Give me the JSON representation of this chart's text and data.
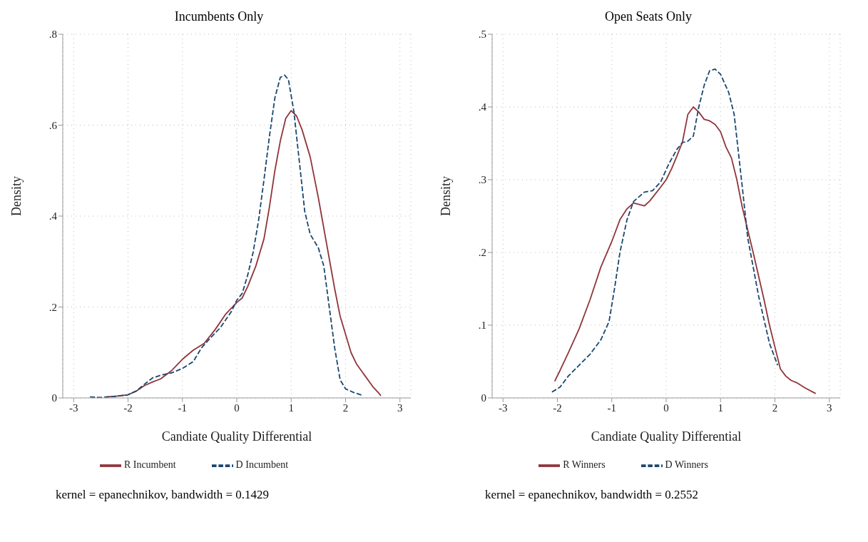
{
  "chart_data": [
    {
      "type": "line",
      "title": "Incumbents Only",
      "xlabel": "Candiate Quality Differential",
      "ylabel": "Density",
      "xlim": [
        -3.2,
        3.2
      ],
      "xticks": [
        -3,
        -2,
        -1,
        0,
        1,
        2,
        3
      ],
      "ylim": [
        0,
        0.8
      ],
      "yticks": [
        {
          "value": 0,
          "label": "0"
        },
        {
          "value": 0.2,
          "label": ".2"
        },
        {
          "value": 0.4,
          "label": ".4"
        },
        {
          "value": 0.6,
          "label": ".6"
        },
        {
          "value": 0.8,
          "label": ".8"
        }
      ],
      "grid": true,
      "legend": "bottom",
      "marker": "none",
      "annotations": [
        "kernel = epanechnikov, bandwidth = 0.1429"
      ],
      "series": [
        {
          "name": "R Incumbent",
          "color": "#90353b",
          "line_style": "solid",
          "x": [
            -2.4,
            -2.2,
            -2,
            -1.85,
            -1.7,
            -1.55,
            -1.4,
            -1.2,
            -1,
            -0.8,
            -0.6,
            -0.4,
            -0.2,
            0,
            0.1,
            0.2,
            0.35,
            0.5,
            0.6,
            0.7,
            0.8,
            0.9,
            1,
            1.1,
            1.2,
            1.35,
            1.5,
            1.65,
            1.8,
            1.9,
            2,
            2.1,
            2.2,
            2.35,
            2.5,
            2.6,
            2.65
          ],
          "values": [
            0.002,
            0.004,
            0.007,
            0.015,
            0.027,
            0.035,
            0.042,
            0.06,
            0.085,
            0.105,
            0.12,
            0.15,
            0.185,
            0.21,
            0.22,
            0.245,
            0.29,
            0.35,
            0.42,
            0.5,
            0.565,
            0.615,
            0.632,
            0.62,
            0.59,
            0.53,
            0.44,
            0.34,
            0.24,
            0.18,
            0.14,
            0.1,
            0.075,
            0.05,
            0.025,
            0.012,
            0.005
          ]
        },
        {
          "name": "D Incumbent",
          "color": "#1a476f",
          "line_style": "dashed",
          "x": [
            -2.7,
            -2.5,
            -2.2,
            -2,
            -1.85,
            -1.7,
            -1.55,
            -1.4,
            -1.2,
            -1,
            -0.8,
            -0.65,
            -0.5,
            -0.3,
            -0.1,
            0,
            0.1,
            0.2,
            0.3,
            0.4,
            0.5,
            0.6,
            0.7,
            0.8,
            0.88,
            0.95,
            1.05,
            1.15,
            1.25,
            1.35,
            1.5,
            1.6,
            1.7,
            1.8,
            1.9,
            2,
            2.15,
            2.3
          ],
          "values": [
            0.002,
            0.001,
            0.004,
            0.007,
            0.015,
            0.03,
            0.044,
            0.05,
            0.055,
            0.065,
            0.08,
            0.11,
            0.13,
            0.155,
            0.19,
            0.215,
            0.23,
            0.27,
            0.32,
            0.39,
            0.48,
            0.575,
            0.66,
            0.705,
            0.71,
            0.7,
            0.63,
            0.52,
            0.41,
            0.36,
            0.33,
            0.29,
            0.2,
            0.11,
            0.04,
            0.02,
            0.012,
            0.006
          ]
        }
      ]
    },
    {
      "type": "line",
      "title": "Open Seats Only",
      "xlabel": "Candiate Quality Differential",
      "ylabel": "Density",
      "xlim": [
        -3.2,
        3.2
      ],
      "xticks": [
        -3,
        -2,
        -1,
        0,
        1,
        2,
        3
      ],
      "ylim": [
        0,
        0.5
      ],
      "yticks": [
        {
          "value": 0,
          "label": "0"
        },
        {
          "value": 0.1,
          "label": ".1"
        },
        {
          "value": 0.2,
          "label": ".2"
        },
        {
          "value": 0.3,
          "label": ".3"
        },
        {
          "value": 0.4,
          "label": ".4"
        },
        {
          "value": 0.5,
          "label": ".5"
        }
      ],
      "grid": true,
      "legend": "bottom",
      "marker": "none",
      "annotations": [
        "kernel = epanechnikov, bandwidth = 0.2552"
      ],
      "series": [
        {
          "name": "R Winners",
          "color": "#90353b",
          "line_style": "solid",
          "x": [
            -2.05,
            -1.95,
            -1.8,
            -1.6,
            -1.4,
            -1.2,
            -1,
            -0.85,
            -0.72,
            -0.6,
            -0.4,
            -0.3,
            -0.1,
            0,
            0.1,
            0.2,
            0.3,
            0.4,
            0.5,
            0.6,
            0.7,
            0.8,
            0.9,
            1,
            1.1,
            1.2,
            1.3,
            1.4,
            1.6,
            1.8,
            1.9,
            2,
            2.1,
            2.2,
            2.3,
            2.4,
            2.55,
            2.75
          ],
          "values": [
            0.023,
            0.038,
            0.062,
            0.095,
            0.135,
            0.18,
            0.215,
            0.245,
            0.26,
            0.268,
            0.264,
            0.271,
            0.29,
            0.3,
            0.315,
            0.333,
            0.352,
            0.39,
            0.4,
            0.393,
            0.383,
            0.381,
            0.376,
            0.366,
            0.345,
            0.33,
            0.3,
            0.262,
            0.2,
            0.135,
            0.1,
            0.07,
            0.04,
            0.03,
            0.024,
            0.021,
            0.014,
            0.006
          ]
        },
        {
          "name": "D Winners",
          "color": "#1a476f",
          "line_style": "dashed",
          "x": [
            -2.1,
            -1.95,
            -1.8,
            -1.6,
            -1.4,
            -1.2,
            -1.05,
            -0.95,
            -0.85,
            -0.72,
            -0.6,
            -0.4,
            -0.25,
            -0.1,
            0.05,
            0.2,
            0.3,
            0.4,
            0.5,
            0.6,
            0.7,
            0.8,
            0.9,
            1,
            1.15,
            1.25,
            1.4,
            1.5,
            1.7,
            1.9,
            2.05
          ],
          "values": [
            0.008,
            0.015,
            0.03,
            0.045,
            0.06,
            0.08,
            0.105,
            0.15,
            0.2,
            0.245,
            0.27,
            0.283,
            0.285,
            0.297,
            0.322,
            0.342,
            0.351,
            0.353,
            0.36,
            0.4,
            0.43,
            0.45,
            0.452,
            0.445,
            0.42,
            0.39,
            0.29,
            0.22,
            0.14,
            0.075,
            0.045
          ]
        }
      ]
    }
  ]
}
